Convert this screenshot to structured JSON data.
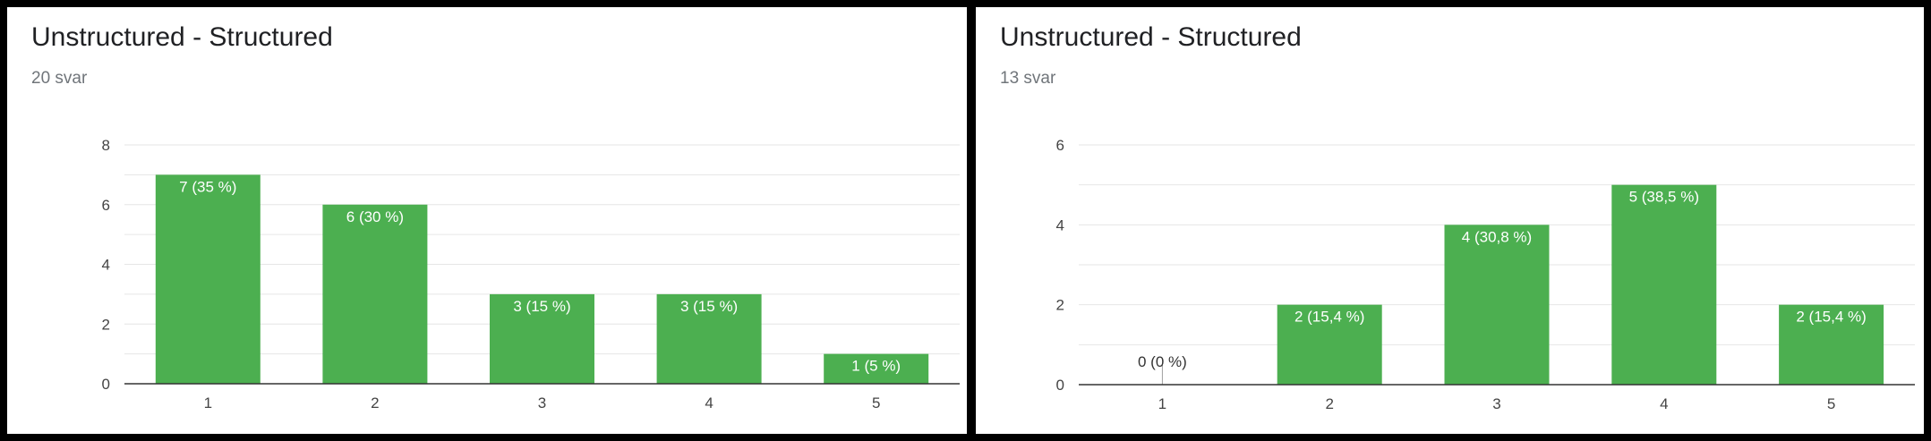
{
  "colors": {
    "bar": "#4caf50",
    "grid": "#e6e6e6",
    "axis": "#333333",
    "label_inside": "#ffffff",
    "label_outside": "#333333"
  },
  "panels": [
    {
      "title": "Unstructured - Structured",
      "subtitle": "20 svar"
    },
    {
      "title": "Unstructured - Structured",
      "subtitle": "13 svar"
    }
  ],
  "chart_data": [
    {
      "type": "bar",
      "title": "Unstructured - Structured",
      "subtitle": "20 svar",
      "categories": [
        "1",
        "2",
        "3",
        "4",
        "5"
      ],
      "values": [
        7,
        6,
        3,
        3,
        1
      ],
      "data_labels": [
        "7 (35 %)",
        "6 (30 %)",
        "3 (15 %)",
        "3 (15 %)",
        "1 (5 %)"
      ],
      "ylim": [
        0,
        8
      ],
      "yticks": [
        "0",
        "2",
        "4",
        "6",
        "8"
      ],
      "grid": true,
      "legend": "none"
    },
    {
      "type": "bar",
      "title": "Unstructured - Structured",
      "subtitle": "13 svar",
      "categories": [
        "1",
        "2",
        "3",
        "4",
        "5"
      ],
      "values": [
        0,
        2,
        4,
        5,
        2
      ],
      "data_labels": [
        "0 (0 %)",
        "2 (15,4 %)",
        "4 (30,8 %)",
        "5 (38,5 %)",
        "2 (15,4 %)"
      ],
      "ylim": [
        0,
        6
      ],
      "yticks": [
        "0",
        "2",
        "4",
        "6"
      ],
      "grid": true,
      "legend": "none"
    }
  ]
}
